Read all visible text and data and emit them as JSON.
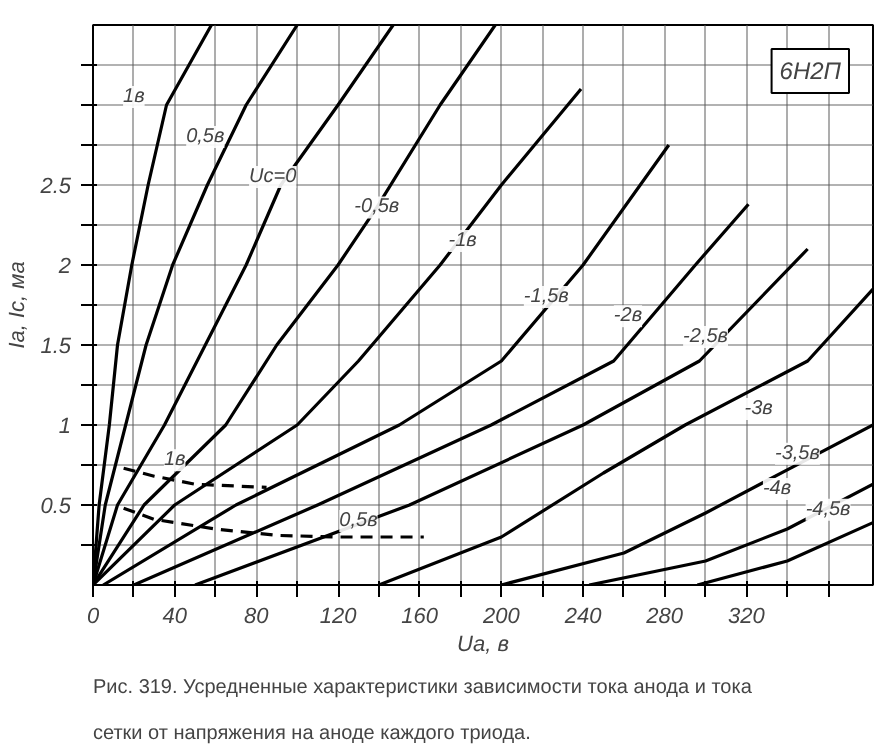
{
  "chart_data": {
    "type": "line",
    "xlabel": "Ua, в",
    "ylabel": "Ia, Ic, ма",
    "xlim": [
      0,
      382
    ],
    "ylim": [
      0,
      3.5
    ],
    "xticks": [
      0,
      {
        "value": 20,
        "label": null
      },
      40,
      {
        "value": 60,
        "label": null
      },
      80,
      {
        "value": 100,
        "label": null
      },
      120,
      {
        "value": 140,
        "label": null
      },
      160,
      {
        "value": 180,
        "label": null
      },
      200,
      {
        "value": 220,
        "label": null
      },
      240,
      {
        "value": 260,
        "label": null
      },
      280,
      {
        "value": 300,
        "label": null
      },
      320,
      {
        "value": 340,
        "label": null
      },
      {
        "value": 360,
        "label": null
      }
    ],
    "yticks": [
      {
        "value": 0.25,
        "label": null
      },
      0.5,
      {
        "value": 0.75,
        "label": null
      },
      1,
      {
        "value": 1.25,
        "label": null
      },
      1.5,
      {
        "value": 1.75,
        "label": null
      },
      2,
      {
        "value": 2.25,
        "label": null
      },
      2.5,
      {
        "value": 2.75,
        "label": null
      },
      {
        "value": 3,
        "label": null
      },
      {
        "value": 3.25,
        "label": null
      }
    ],
    "grid": true,
    "line_style": "solid",
    "series": [
      {
        "color": "#000000",
        "x": [
          0,
          3,
          8,
          12,
          19,
          27,
          36,
          58
        ],
        "values": [
          0,
          0.5,
          1,
          1.5,
          2,
          2.5,
          3,
          3.5
        ]
      },
      {
        "color": "#000000",
        "x": [
          0,
          6,
          16,
          26,
          39,
          56,
          75,
          100
        ],
        "values": [
          0,
          0.5,
          1,
          1.5,
          2,
          2.5,
          3,
          3.5
        ]
      },
      {
        "color": "#000000",
        "x": [
          0,
          12,
          35,
          55,
          75,
          92,
          120,
          147
        ],
        "values": [
          0,
          0.5,
          1,
          1.5,
          2,
          2.5,
          3,
          3.5
        ]
      },
      {
        "color": "#000000",
        "x": [
          0,
          25,
          65,
          90,
          120,
          139,
          170,
          197
        ],
        "values": [
          0,
          0.5,
          1,
          1.5,
          2,
          2.36,
          3,
          3.5
        ]
      },
      {
        "color": "#000000",
        "x": [
          0,
          40,
          100,
          130,
          170,
          200,
          239
        ],
        "values": [
          0,
          0.5,
          1,
          1.4,
          2,
          2.5,
          3.1
        ]
      },
      {
        "color": "#000000",
        "x": [
          5,
          70,
          150,
          200,
          240,
          282
        ],
        "values": [
          0,
          0.5,
          1,
          1.4,
          2,
          2.75
        ]
      },
      {
        "color": "#000000",
        "x": [
          20,
          110,
          195,
          255,
          295,
          321
        ],
        "values": [
          0,
          0.5,
          1,
          1.4,
          2,
          2.38
        ]
      },
      {
        "color": "#000000",
        "x": [
          50,
          155,
          240,
          297,
          350
        ],
        "values": [
          0,
          0.5,
          1,
          1.4,
          2.1
        ]
      },
      {
        "color": "#000000",
        "x": [
          140,
          200,
          250,
          290,
          350,
          382
        ],
        "values": [
          0,
          0.3,
          0.7,
          1,
          1.4,
          1.85
        ]
      },
      {
        "color": "#000000",
        "x": [
          200,
          260,
          300,
          340,
          382
        ],
        "values": [
          0,
          0.2,
          0.45,
          0.72,
          1
        ]
      },
      {
        "color": "#000000",
        "x": [
          243,
          300,
          340,
          382
        ],
        "values": [
          0,
          0.15,
          0.35,
          0.63
        ]
      },
      {
        "color": "#000000",
        "x": [
          296,
          340,
          382
        ],
        "values": [
          0,
          0.15,
          0.39
        ]
      },
      {
        "color": "#000000",
        "line_style": "dashed",
        "x": [
          15,
          30,
          50,
          85
        ],
        "values": [
          0.73,
          0.68,
          0.63,
          0.61
        ]
      },
      {
        "color": "#000000",
        "line_style": "dashed",
        "x": [
          15,
          30,
          60,
          90,
          120,
          162
        ],
        "values": [
          0.48,
          0.41,
          0.35,
          0.31,
          0.3,
          0.3
        ]
      }
    ],
    "annotations": [
      "6Н2П",
      "Рис. 319. Усредненные характеристики зависимости тока анода и тока сетки от напряжения на аноде каждого триода.",
      {
        "text": "1в",
        "x": 20,
        "y": 3.05
      },
      {
        "text": "0,5в",
        "x": 55,
        "y": 2.8
      },
      {
        "text": "Uc=0",
        "x": 88,
        "y": 2.55
      },
      {
        "text": "-0,5в",
        "x": 139,
        "y": 2.36
      },
      {
        "text": "-1в",
        "x": 181,
        "y": 2.15
      },
      {
        "text": "-1,5в",
        "x": 222,
        "y": 1.8
      },
      {
        "text": "-2в",
        "x": 262,
        "y": 1.68
      },
      {
        "text": "-2,5в",
        "x": 300,
        "y": 1.55
      },
      {
        "text": "-3в",
        "x": 326,
        "y": 1.1
      },
      {
        "text": "-3,5в",
        "x": 345,
        "y": 0.82
      },
      {
        "text": "-4в",
        "x": 335,
        "y": 0.6
      },
      {
        "text": "-4,5в",
        "x": 360,
        "y": 0.47
      },
      {
        "text": "1в",
        "x": 40,
        "y": 0.78
      },
      {
        "text": "0,5в",
        "x": 130,
        "y": 0.4
      }
    ]
  }
}
